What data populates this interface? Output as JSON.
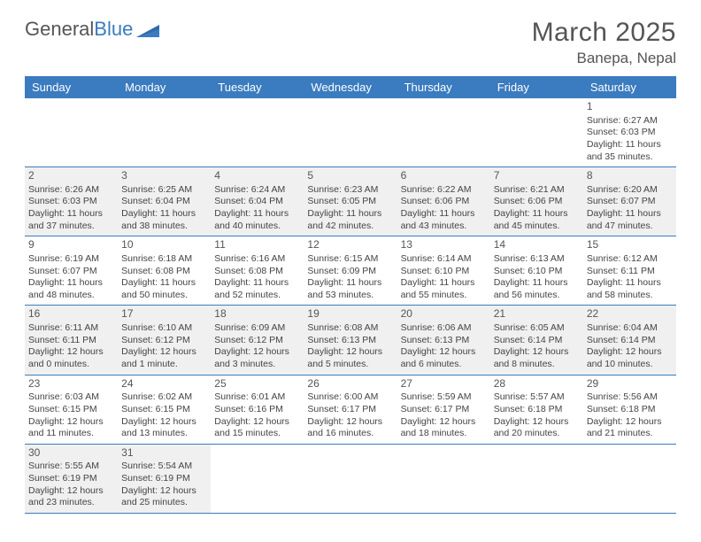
{
  "logo": {
    "text1": "General",
    "text2": "Blue"
  },
  "title": "March 2025",
  "location": "Banepa, Nepal",
  "weekdays": [
    "Sunday",
    "Monday",
    "Tuesday",
    "Wednesday",
    "Thursday",
    "Friday",
    "Saturday"
  ],
  "colors": {
    "header_bg": "#3b7bbf",
    "cell_shade": "#f0f0f0",
    "border": "#3b7bbf"
  },
  "weeks": [
    [
      {
        "blank": true
      },
      {
        "blank": true
      },
      {
        "blank": true
      },
      {
        "blank": true
      },
      {
        "blank": true
      },
      {
        "blank": true
      },
      {
        "day": "1",
        "sunrise": "Sunrise: 6:27 AM",
        "sunset": "Sunset: 6:03 PM",
        "d1": "Daylight: 11 hours",
        "d2": "and 35 minutes."
      }
    ],
    [
      {
        "day": "2",
        "sunrise": "Sunrise: 6:26 AM",
        "sunset": "Sunset: 6:03 PM",
        "d1": "Daylight: 11 hours",
        "d2": "and 37 minutes."
      },
      {
        "day": "3",
        "sunrise": "Sunrise: 6:25 AM",
        "sunset": "Sunset: 6:04 PM",
        "d1": "Daylight: 11 hours",
        "d2": "and 38 minutes."
      },
      {
        "day": "4",
        "sunrise": "Sunrise: 6:24 AM",
        "sunset": "Sunset: 6:04 PM",
        "d1": "Daylight: 11 hours",
        "d2": "and 40 minutes."
      },
      {
        "day": "5",
        "sunrise": "Sunrise: 6:23 AM",
        "sunset": "Sunset: 6:05 PM",
        "d1": "Daylight: 11 hours",
        "d2": "and 42 minutes."
      },
      {
        "day": "6",
        "sunrise": "Sunrise: 6:22 AM",
        "sunset": "Sunset: 6:06 PM",
        "d1": "Daylight: 11 hours",
        "d2": "and 43 minutes."
      },
      {
        "day": "7",
        "sunrise": "Sunrise: 6:21 AM",
        "sunset": "Sunset: 6:06 PM",
        "d1": "Daylight: 11 hours",
        "d2": "and 45 minutes."
      },
      {
        "day": "8",
        "sunrise": "Sunrise: 6:20 AM",
        "sunset": "Sunset: 6:07 PM",
        "d1": "Daylight: 11 hours",
        "d2": "and 47 minutes."
      }
    ],
    [
      {
        "day": "9",
        "sunrise": "Sunrise: 6:19 AM",
        "sunset": "Sunset: 6:07 PM",
        "d1": "Daylight: 11 hours",
        "d2": "and 48 minutes."
      },
      {
        "day": "10",
        "sunrise": "Sunrise: 6:18 AM",
        "sunset": "Sunset: 6:08 PM",
        "d1": "Daylight: 11 hours",
        "d2": "and 50 minutes."
      },
      {
        "day": "11",
        "sunrise": "Sunrise: 6:16 AM",
        "sunset": "Sunset: 6:08 PM",
        "d1": "Daylight: 11 hours",
        "d2": "and 52 minutes."
      },
      {
        "day": "12",
        "sunrise": "Sunrise: 6:15 AM",
        "sunset": "Sunset: 6:09 PM",
        "d1": "Daylight: 11 hours",
        "d2": "and 53 minutes."
      },
      {
        "day": "13",
        "sunrise": "Sunrise: 6:14 AM",
        "sunset": "Sunset: 6:10 PM",
        "d1": "Daylight: 11 hours",
        "d2": "and 55 minutes."
      },
      {
        "day": "14",
        "sunrise": "Sunrise: 6:13 AM",
        "sunset": "Sunset: 6:10 PM",
        "d1": "Daylight: 11 hours",
        "d2": "and 56 minutes."
      },
      {
        "day": "15",
        "sunrise": "Sunrise: 6:12 AM",
        "sunset": "Sunset: 6:11 PM",
        "d1": "Daylight: 11 hours",
        "d2": "and 58 minutes."
      }
    ],
    [
      {
        "day": "16",
        "sunrise": "Sunrise: 6:11 AM",
        "sunset": "Sunset: 6:11 PM",
        "d1": "Daylight: 12 hours",
        "d2": "and 0 minutes."
      },
      {
        "day": "17",
        "sunrise": "Sunrise: 6:10 AM",
        "sunset": "Sunset: 6:12 PM",
        "d1": "Daylight: 12 hours",
        "d2": "and 1 minute."
      },
      {
        "day": "18",
        "sunrise": "Sunrise: 6:09 AM",
        "sunset": "Sunset: 6:12 PM",
        "d1": "Daylight: 12 hours",
        "d2": "and 3 minutes."
      },
      {
        "day": "19",
        "sunrise": "Sunrise: 6:08 AM",
        "sunset": "Sunset: 6:13 PM",
        "d1": "Daylight: 12 hours",
        "d2": "and 5 minutes."
      },
      {
        "day": "20",
        "sunrise": "Sunrise: 6:06 AM",
        "sunset": "Sunset: 6:13 PM",
        "d1": "Daylight: 12 hours",
        "d2": "and 6 minutes."
      },
      {
        "day": "21",
        "sunrise": "Sunrise: 6:05 AM",
        "sunset": "Sunset: 6:14 PM",
        "d1": "Daylight: 12 hours",
        "d2": "and 8 minutes."
      },
      {
        "day": "22",
        "sunrise": "Sunrise: 6:04 AM",
        "sunset": "Sunset: 6:14 PM",
        "d1": "Daylight: 12 hours",
        "d2": "and 10 minutes."
      }
    ],
    [
      {
        "day": "23",
        "sunrise": "Sunrise: 6:03 AM",
        "sunset": "Sunset: 6:15 PM",
        "d1": "Daylight: 12 hours",
        "d2": "and 11 minutes."
      },
      {
        "day": "24",
        "sunrise": "Sunrise: 6:02 AM",
        "sunset": "Sunset: 6:15 PM",
        "d1": "Daylight: 12 hours",
        "d2": "and 13 minutes."
      },
      {
        "day": "25",
        "sunrise": "Sunrise: 6:01 AM",
        "sunset": "Sunset: 6:16 PM",
        "d1": "Daylight: 12 hours",
        "d2": "and 15 minutes."
      },
      {
        "day": "26",
        "sunrise": "Sunrise: 6:00 AM",
        "sunset": "Sunset: 6:17 PM",
        "d1": "Daylight: 12 hours",
        "d2": "and 16 minutes."
      },
      {
        "day": "27",
        "sunrise": "Sunrise: 5:59 AM",
        "sunset": "Sunset: 6:17 PM",
        "d1": "Daylight: 12 hours",
        "d2": "and 18 minutes."
      },
      {
        "day": "28",
        "sunrise": "Sunrise: 5:57 AM",
        "sunset": "Sunset: 6:18 PM",
        "d1": "Daylight: 12 hours",
        "d2": "and 20 minutes."
      },
      {
        "day": "29",
        "sunrise": "Sunrise: 5:56 AM",
        "sunset": "Sunset: 6:18 PM",
        "d1": "Daylight: 12 hours",
        "d2": "and 21 minutes."
      }
    ],
    [
      {
        "day": "30",
        "sunrise": "Sunrise: 5:55 AM",
        "sunset": "Sunset: 6:19 PM",
        "d1": "Daylight: 12 hours",
        "d2": "and 23 minutes."
      },
      {
        "day": "31",
        "sunrise": "Sunrise: 5:54 AM",
        "sunset": "Sunset: 6:19 PM",
        "d1": "Daylight: 12 hours",
        "d2": "and 25 minutes."
      },
      {
        "blank": true
      },
      {
        "blank": true
      },
      {
        "blank": true
      },
      {
        "blank": true
      },
      {
        "blank": true
      }
    ]
  ]
}
